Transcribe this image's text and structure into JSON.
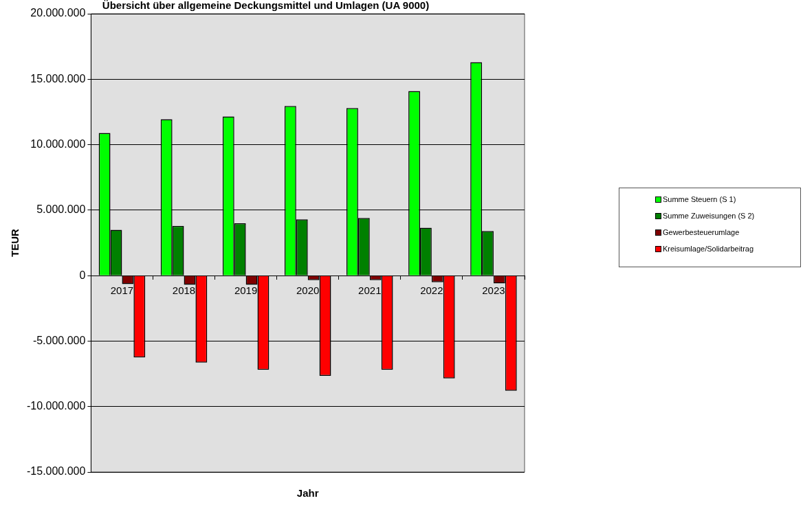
{
  "chart_data": {
    "type": "bar",
    "title": "Übersicht über allgemeine Deckungsmittel und Umlagen (UA 9000)",
    "xlabel": "Jahr",
    "ylabel": "TEUR",
    "categories": [
      "2017",
      "2018",
      "2019",
      "2020",
      "2021",
      "2022",
      "2023"
    ],
    "series": [
      {
        "name": "Summe Steuern (S 1)",
        "color": "#00ff00",
        "values": [
          10900000,
          11950000,
          12150000,
          12950000,
          12800000,
          14100000,
          16300000
        ]
      },
      {
        "name": "Summe Zuweisungen (S 2)",
        "color": "#008000",
        "values": [
          3500000,
          3800000,
          4000000,
          4300000,
          4400000,
          3650000,
          3400000
        ]
      },
      {
        "name": "Gewerbesteuerumlage",
        "color": "#800000",
        "values": [
          -650000,
          -700000,
          -700000,
          -350000,
          -350000,
          -500000,
          -600000
        ]
      },
      {
        "name": "Kreisumlage/Solidarbeitrag",
        "color": "#ff0000",
        "values": [
          -6250000,
          -6650000,
          -7200000,
          -7650000,
          -7200000,
          -7850000,
          -8800000
        ]
      }
    ],
    "ylim": [
      -15000000,
      20000000
    ],
    "yticks": [
      {
        "value": -15000000,
        "label": "-15.000.000"
      },
      {
        "value": -10000000,
        "label": "-10.000.000"
      },
      {
        "value": -5000000,
        "label": "-5.000.000"
      },
      {
        "value": 0,
        "label": "0"
      },
      {
        "value": 5000000,
        "label": "5.000.000"
      },
      {
        "value": 10000000,
        "label": "10.000.000"
      },
      {
        "value": 15000000,
        "label": "15.000.000"
      },
      {
        "value": 20000000,
        "label": "20.000.000"
      }
    ],
    "grid": "y",
    "legend": "right"
  }
}
